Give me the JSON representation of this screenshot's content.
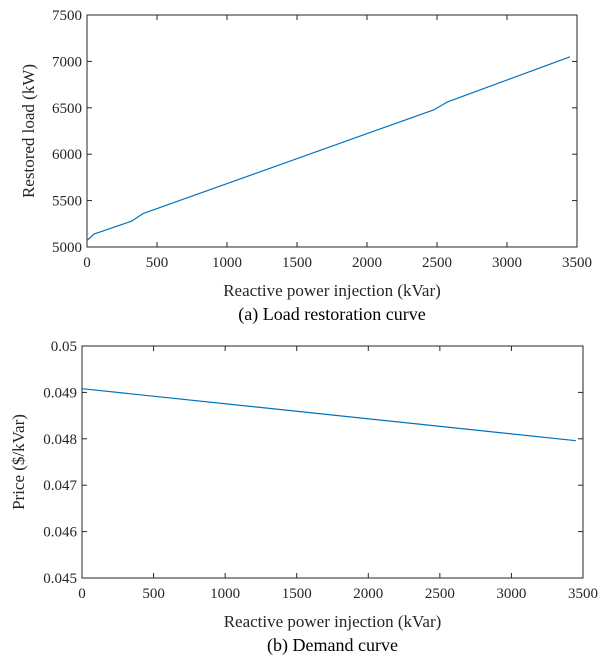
{
  "chart_data": [
    {
      "type": "line",
      "caption": "(a) Load restoration curve",
      "xlabel": "Reactive power injection (kVar)",
      "ylabel": "Restored load (kW)",
      "xlim": [
        0,
        3500
      ],
      "ylim": [
        5000,
        7500
      ],
      "xticks": [
        0,
        500,
        1000,
        1500,
        2000,
        2500,
        3000,
        3500
      ],
      "yticks": [
        5000,
        5500,
        6000,
        6500,
        7000,
        7500
      ],
      "grid": false,
      "line_color": "#0072BD",
      "series": [
        {
          "x": [
            0,
            50,
            320,
            400,
            2480,
            2570,
            3450
          ],
          "y": [
            5070,
            5140,
            5280,
            5360,
            6480,
            6560,
            7050
          ]
        }
      ]
    },
    {
      "type": "line",
      "caption": "(b) Demand curve",
      "xlabel": "Reactive power injection (kVar)",
      "ylabel": "Price ($/kVar)",
      "xlim": [
        0,
        3500
      ],
      "ylim": [
        0.045,
        0.05
      ],
      "xticks": [
        0,
        500,
        1000,
        1500,
        2000,
        2500,
        3000,
        3500
      ],
      "yticks": [
        0.045,
        0.046,
        0.047,
        0.048,
        0.049,
        0.05
      ],
      "ytick_labels": [
        "0.045",
        "0.046",
        "0.047",
        "0.048",
        "0.049",
        "0.05"
      ],
      "grid": false,
      "line_color": "#0072BD",
      "series": [
        {
          "x": [
            0,
            3450
          ],
          "y": [
            0.04908,
            0.04796
          ]
        }
      ]
    }
  ]
}
